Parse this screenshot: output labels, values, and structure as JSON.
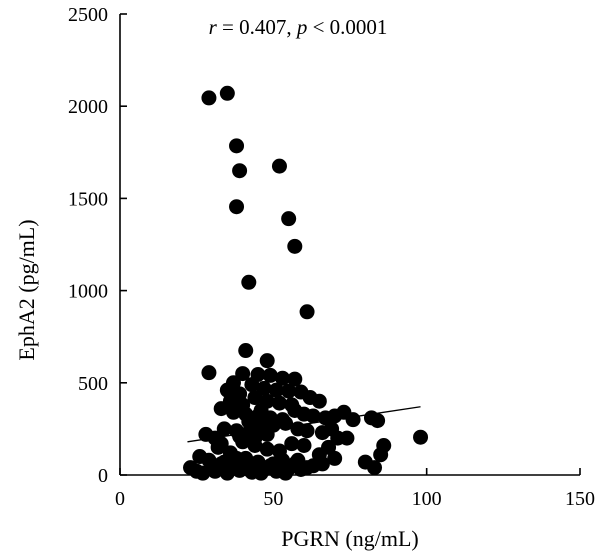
{
  "chart_data": {
    "type": "scatter",
    "xlabel": "PGRN (ng/mL)",
    "ylabel": "EphA2 (pg/mL)",
    "xlim": [
      0,
      150
    ],
    "ylim": [
      0,
      2500
    ],
    "x_ticks": [
      "0",
      "50",
      "100",
      "150"
    ],
    "y_ticks": [
      "0",
      "500",
      "1000",
      "1500",
      "2000",
      "2500"
    ],
    "annotation": {
      "r_symbol": "r",
      "r_text": " = 0.407, ",
      "p_symbol": "p",
      "p_text": " < 0.0001"
    },
    "grid": false,
    "legend": "none",
    "point_color": "#000000",
    "trendline": {
      "x": [
        22,
        98
      ],
      "y": [
        180,
        370
      ]
    },
    "series": [
      {
        "points": [
          [
            29,
            2045
          ],
          [
            35,
            2070
          ],
          [
            38,
            1785
          ],
          [
            39,
            1650
          ],
          [
            38,
            1455
          ],
          [
            52,
            1675
          ],
          [
            55,
            1390
          ],
          [
            57,
            1240
          ],
          [
            42,
            1045
          ],
          [
            61,
            885
          ],
          [
            41,
            675
          ],
          [
            48,
            620
          ],
          [
            29,
            555
          ],
          [
            40,
            550
          ],
          [
            45,
            545
          ],
          [
            49,
            540
          ],
          [
            53,
            525
          ],
          [
            57,
            520
          ],
          [
            37,
            500
          ],
          [
            43,
            490
          ],
          [
            47,
            470
          ],
          [
            51,
            460
          ],
          [
            55,
            455
          ],
          [
            59,
            450
          ],
          [
            62,
            420
          ],
          [
            65,
            400
          ],
          [
            35,
            460
          ],
          [
            39,
            440
          ],
          [
            44,
            420
          ],
          [
            36,
            400
          ],
          [
            40,
            380
          ],
          [
            48,
            400
          ],
          [
            52,
            390
          ],
          [
            56,
            380
          ],
          [
            33,
            360
          ],
          [
            37,
            340
          ],
          [
            41,
            330
          ],
          [
            45,
            320
          ],
          [
            49,
            310
          ],
          [
            53,
            300
          ],
          [
            57,
            350
          ],
          [
            60,
            330
          ],
          [
            63,
            320
          ],
          [
            67,
            310
          ],
          [
            70,
            320
          ],
          [
            73,
            340
          ],
          [
            76,
            300
          ],
          [
            82,
            310
          ],
          [
            84,
            295
          ],
          [
            28,
            220
          ],
          [
            31,
            200
          ],
          [
            34,
            250
          ],
          [
            38,
            240
          ],
          [
            42,
            230
          ],
          [
            46,
            260
          ],
          [
            50,
            270
          ],
          [
            54,
            280
          ],
          [
            58,
            250
          ],
          [
            61,
            240
          ],
          [
            66,
            230
          ],
          [
            69,
            250
          ],
          [
            74,
            200
          ],
          [
            86,
            160
          ],
          [
            98,
            205
          ],
          [
            32,
            150
          ],
          [
            36,
            120
          ],
          [
            40,
            180
          ],
          [
            44,
            160
          ],
          [
            48,
            140
          ],
          [
            52,
            130
          ],
          [
            56,
            170
          ],
          [
            60,
            160
          ],
          [
            65,
            110
          ],
          [
            68,
            150
          ],
          [
            71,
            200
          ],
          [
            85,
            110
          ],
          [
            26,
            100
          ],
          [
            29,
            80
          ],
          [
            33,
            60
          ],
          [
            37,
            40
          ],
          [
            41,
            90
          ],
          [
            45,
            70
          ],
          [
            49,
            50
          ],
          [
            53,
            80
          ],
          [
            57,
            60
          ],
          [
            61,
            40
          ],
          [
            66,
            60
          ],
          [
            70,
            90
          ],
          [
            80,
            70
          ],
          [
            83,
            40
          ],
          [
            23,
            40
          ],
          [
            25,
            20
          ],
          [
            27,
            10
          ],
          [
            31,
            20
          ],
          [
            35,
            10
          ],
          [
            39,
            25
          ],
          [
            43,
            15
          ],
          [
            47,
            30
          ],
          [
            51,
            20
          ],
          [
            55,
            35
          ],
          [
            59,
            30
          ],
          [
            63,
            50
          ],
          [
            30,
            40
          ],
          [
            34,
            70
          ],
          [
            38,
            90
          ],
          [
            42,
            30
          ],
          [
            46,
            10
          ],
          [
            50,
            60
          ],
          [
            54,
            10
          ],
          [
            58,
            80
          ],
          [
            44,
            200
          ],
          [
            48,
            220
          ],
          [
            42,
            290
          ],
          [
            46,
            350
          ],
          [
            39,
            210
          ],
          [
            33,
            170
          ]
        ]
      }
    ]
  }
}
